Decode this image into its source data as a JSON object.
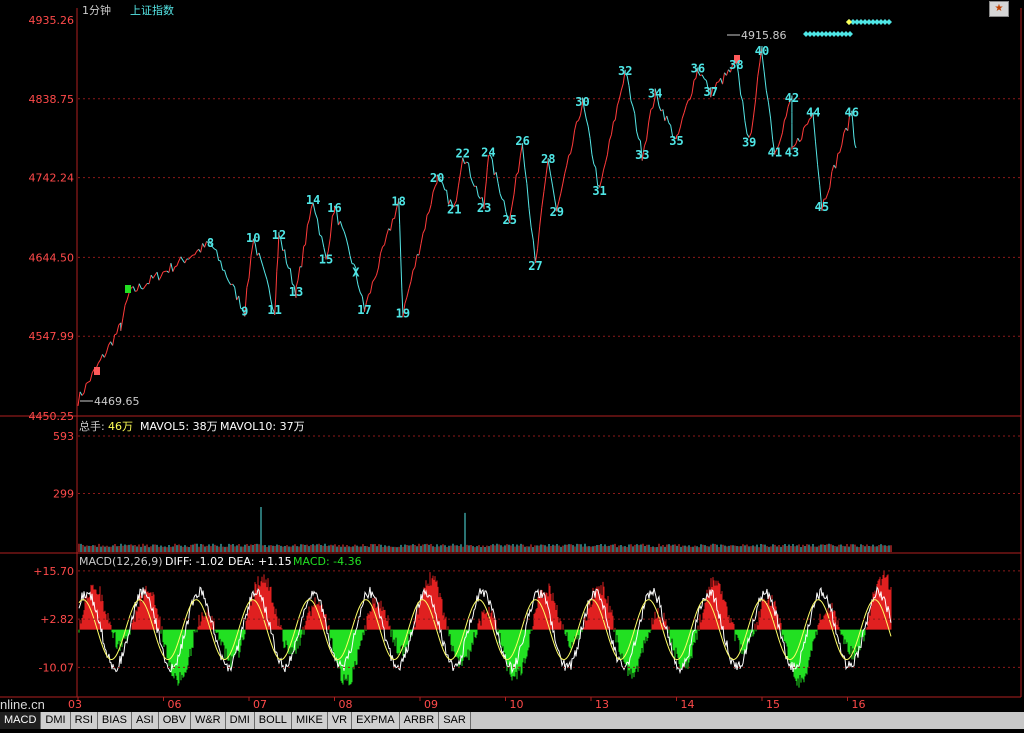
{
  "header": {
    "period": "1分钟",
    "index_name": "上证指数"
  },
  "price_axis": [
    "4935.26",
    "4838.75",
    "4742.24",
    "4644.50",
    "4547.99",
    "4450.25"
  ],
  "price_annotations": {
    "high": "4915.86",
    "low": "4469.65"
  },
  "volume_panel": {
    "label_total": "总手:",
    "total": "46万",
    "mavol5": "MAVOL5: 38万",
    "mavol10": "MAVOL10: 37万",
    "axis": [
      "593",
      "299"
    ]
  },
  "macd_panel": {
    "name": "MACD(12,26,9)",
    "diff": "DIFF: -1.02",
    "dea": "DEA: +1.15",
    "macd": "MACD: -4.36",
    "axis": [
      "+15.70",
      "+2.82",
      "-10.07"
    ]
  },
  "date_axis": [
    "03",
    "06",
    "07",
    "08",
    "09",
    "10",
    "13",
    "14",
    "15",
    "16"
  ],
  "tabs": [
    "MACD",
    "DMI",
    "RSI",
    "BIAS",
    "ASI",
    "OBV",
    "W&R",
    "DMI",
    "BOLL",
    "MIKE",
    "VR",
    "EXPMA",
    "ARBR",
    "SAR"
  ],
  "active_tab": 0,
  "watermark": "nline.cn",
  "colors": {
    "up": "#ff3b3b",
    "down": "#55e6e6",
    "grid": "#8b1a1a",
    "macd_pos": "#e02020",
    "macd_neg": "#22e022",
    "diff": "#ffffff",
    "dea": "#ffff66",
    "label": "#4fe6e6"
  },
  "chart_data": {
    "type": "line",
    "title": "上证指数 1分钟",
    "ylim": [
      4450.25,
      4935.26
    ],
    "y_ticks": [
      4935.26,
      4838.75,
      4742.24,
      4644.5,
      4547.99,
      4450.25
    ],
    "x_categories": [
      "03",
      "06",
      "07",
      "08",
      "09",
      "10",
      "13",
      "14",
      "15",
      "16"
    ],
    "annotations": [
      {
        "label": "4915.86",
        "type": "high"
      },
      {
        "label": "4469.65",
        "type": "low"
      }
    ],
    "wave_labels": [
      {
        "label": "8",
        "day": 1.55,
        "price": 4662
      },
      {
        "label": "9",
        "day": 1.95,
        "price": 4578
      },
      {
        "label": "10",
        "day": 2.05,
        "price": 4668
      },
      {
        "label": "11",
        "day": 2.3,
        "price": 4580
      },
      {
        "label": "12",
        "day": 2.35,
        "price": 4672
      },
      {
        "label": "13",
        "day": 2.55,
        "price": 4602
      },
      {
        "label": "14",
        "day": 2.75,
        "price": 4715
      },
      {
        "label": "15",
        "day": 2.9,
        "price": 4642
      },
      {
        "label": "16",
        "day": 3.0,
        "price": 4705
      },
      {
        "label": "17",
        "day": 3.35,
        "price": 4580
      },
      {
        "label": "X",
        "day": 3.25,
        "price": 4626
      },
      {
        "label": "18",
        "day": 3.75,
        "price": 4713
      },
      {
        "label": "19",
        "day": 3.8,
        "price": 4576
      },
      {
        "label": "20",
        "day": 4.2,
        "price": 4742
      },
      {
        "label": "21",
        "day": 4.4,
        "price": 4703
      },
      {
        "label": "22",
        "day": 4.5,
        "price": 4772
      },
      {
        "label": "23",
        "day": 4.75,
        "price": 4705
      },
      {
        "label": "24",
        "day": 4.8,
        "price": 4773
      },
      {
        "label": "25",
        "day": 5.05,
        "price": 4690
      },
      {
        "label": "26",
        "day": 5.2,
        "price": 4787
      },
      {
        "label": "27",
        "day": 5.35,
        "price": 4634
      },
      {
        "label": "28",
        "day": 5.5,
        "price": 4765
      },
      {
        "label": "29",
        "day": 5.6,
        "price": 4700
      },
      {
        "label": "30",
        "day": 5.9,
        "price": 4835
      },
      {
        "label": "31",
        "day": 6.1,
        "price": 4726
      },
      {
        "label": "32",
        "day": 6.4,
        "price": 4873
      },
      {
        "label": "33",
        "day": 6.6,
        "price": 4770
      },
      {
        "label": "34",
        "day": 6.75,
        "price": 4845
      },
      {
        "label": "35",
        "day": 7.0,
        "price": 4787
      },
      {
        "label": "36",
        "day": 7.25,
        "price": 4876
      },
      {
        "label": "37",
        "day": 7.4,
        "price": 4847
      },
      {
        "label": "38",
        "day": 7.7,
        "price": 4880
      },
      {
        "label": "39",
        "day": 7.85,
        "price": 4785
      },
      {
        "label": "40",
        "day": 8.0,
        "price": 4897
      },
      {
        "label": "41",
        "day": 8.15,
        "price": 4773
      },
      {
        "label": "42",
        "day": 8.35,
        "price": 4840
      },
      {
        "label": "43",
        "day": 8.35,
        "price": 4773
      },
      {
        "label": "44",
        "day": 8.6,
        "price": 4822
      },
      {
        "label": "45",
        "day": 8.7,
        "price": 4706
      },
      {
        "label": "46",
        "day": 9.05,
        "price": 4822
      }
    ],
    "volume": {
      "ylim": [
        0,
        593
      ],
      "ticks": [
        593,
        299
      ]
    },
    "macd": {
      "ylim": [
        -18,
        17
      ],
      "ticks": [
        15.7,
        2.82,
        -10.07
      ]
    }
  }
}
